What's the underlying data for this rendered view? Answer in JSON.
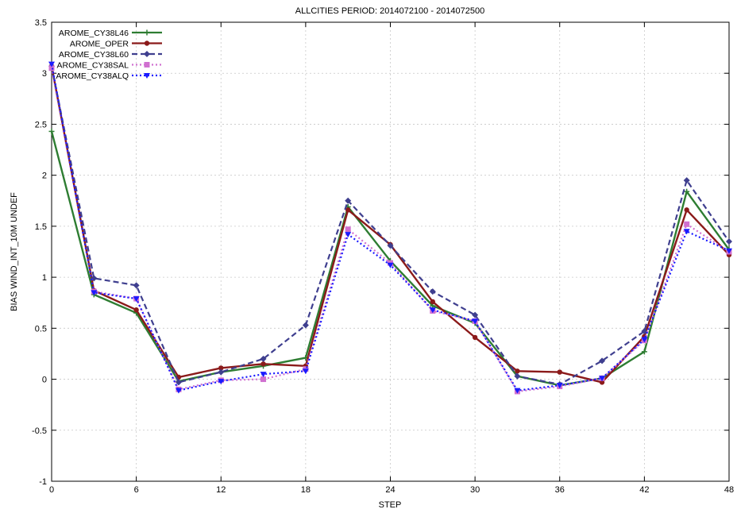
{
  "chart_data": {
    "type": "line",
    "title": "ALLCITIES  PERIOD:  2014072100  -  2014072500",
    "xlabel": "STEP",
    "ylabel": "BIAS  WIND_INT_10M UNDEF",
    "xlim": [
      0,
      48
    ],
    "ylim": [
      -1,
      3.5
    ],
    "xticks": [
      0,
      6,
      12,
      18,
      24,
      30,
      36,
      42,
      48
    ],
    "xtick_labels": [
      "0",
      "6",
      "12",
      "18",
      "24",
      "30",
      "36",
      "42",
      "48"
    ],
    "yticks": [
      -1,
      -0.5,
      0,
      0.5,
      1,
      1.5,
      2,
      2.5,
      3,
      3.5
    ],
    "ytick_labels": [
      "-1",
      "-0.5",
      "0",
      "0.5",
      "1",
      "1.5",
      "2",
      "2.5",
      "3",
      "3.5"
    ],
    "grid": true,
    "legend_position": "top-left",
    "x": [
      0,
      3,
      6,
      9,
      12,
      15,
      18,
      21,
      24,
      27,
      30,
      33,
      36,
      39,
      42,
      45,
      48
    ],
    "series": [
      {
        "name": "AROME_CY38L46",
        "color": "#2e7d32",
        "dash": "solid",
        "marker": "plus",
        "values": [
          2.43,
          0.83,
          0.65,
          -0.02,
          0.07,
          0.13,
          0.21,
          1.69,
          1.16,
          0.72,
          0.55,
          0.03,
          -0.06,
          0.01,
          0.27,
          1.84,
          1.27
        ]
      },
      {
        "name": "AROME_OPER",
        "color": "#8b1a1a",
        "dash": "solid",
        "marker": "circle",
        "values": [
          3.07,
          0.87,
          0.68,
          0.02,
          0.11,
          0.15,
          0.13,
          1.66,
          1.32,
          0.76,
          0.41,
          0.08,
          0.07,
          -0.03,
          0.42,
          1.66,
          1.22
        ]
      },
      {
        "name": "AROME_CY38L60",
        "color": "#3f3f8f",
        "dash": "dash",
        "marker": "diamond",
        "values": [
          3.07,
          0.99,
          0.92,
          -0.03,
          0.07,
          0.2,
          0.53,
          1.75,
          1.31,
          0.86,
          0.63,
          0.03,
          -0.05,
          0.18,
          0.47,
          1.95,
          1.35
        ]
      },
      {
        "name": "AROME_CY38SAL",
        "color": "#d070d0",
        "dash": "dot",
        "marker": "square",
        "values": [
          3.05,
          0.86,
          0.79,
          -0.1,
          -0.01,
          0.0,
          0.1,
          1.47,
          1.14,
          0.67,
          0.57,
          -0.12,
          -0.07,
          0.01,
          0.38,
          1.52,
          1.25
        ]
      },
      {
        "name": "AROME_CY38ALQ",
        "color": "#1a1aff",
        "dash": "dot",
        "marker": "triangle-down",
        "values": [
          3.09,
          0.85,
          0.79,
          -0.11,
          -0.02,
          0.05,
          0.08,
          1.42,
          1.12,
          0.68,
          0.57,
          -0.11,
          -0.06,
          0.01,
          0.39,
          1.45,
          1.26
        ]
      }
    ]
  }
}
